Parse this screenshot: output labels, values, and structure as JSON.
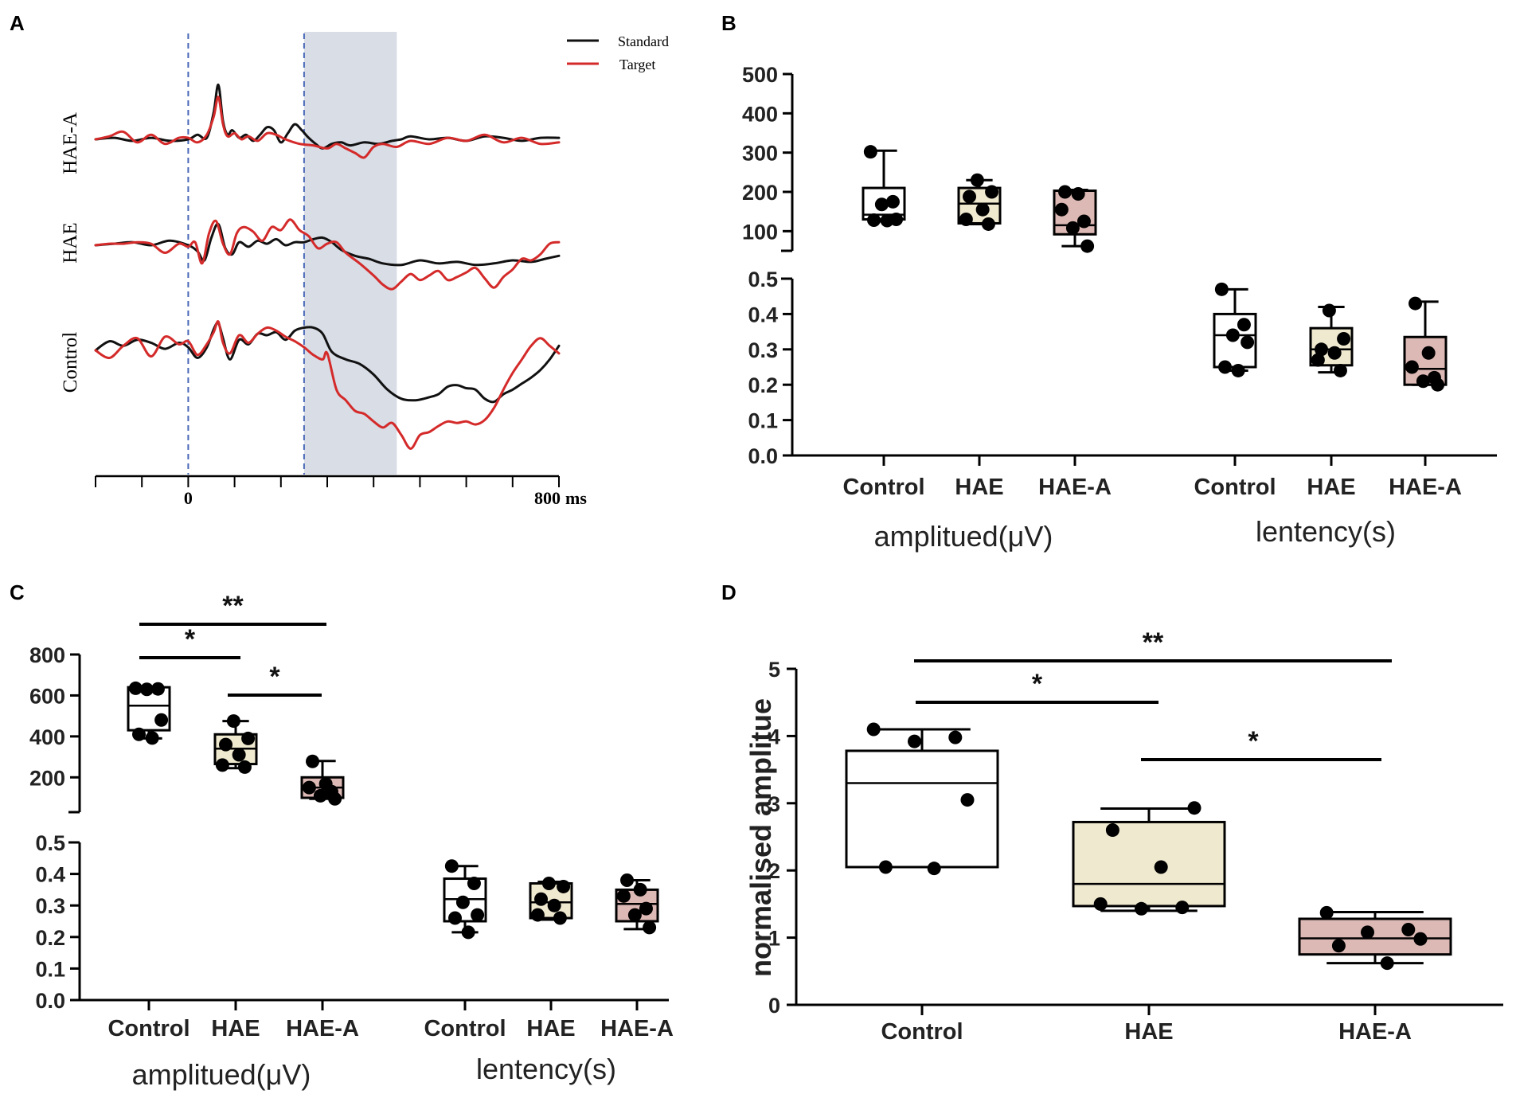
{
  "colors": {
    "standard": "#111111",
    "target": "#d42a2a",
    "control_box": "#ffffff",
    "hae_box": "#efe9cf",
    "haea_box": "#dcb9b5",
    "window_shade": "#d8dde6",
    "dash_line": "#4a68b8"
  },
  "panel_letters": [
    "A",
    "B",
    "C",
    "D"
  ],
  "chart_data": [
    {
      "panel": "A",
      "type": "line",
      "title": "",
      "legend": [
        "Standard",
        "Target"
      ],
      "legend_position": "top-right",
      "row_labels": [
        "HAE-A",
        "HAE",
        "Control"
      ],
      "x_tick_labels": [
        "0",
        "800"
      ],
      "x_unit": "ms",
      "xlim": [
        -200,
        800
      ],
      "analysis_window_ms": [
        250,
        450
      ],
      "series": [
        {
          "row": "HAE-A",
          "name": "Standard",
          "x": [
            -200,
            -160,
            -120,
            -80,
            -40,
            0,
            20,
            40,
            55,
            65,
            75,
            85,
            95,
            110,
            125,
            140,
            155,
            170,
            185,
            200,
            215,
            230,
            245,
            260,
            275,
            290,
            310,
            330,
            350,
            380,
            410,
            440,
            460,
            480,
            520,
            560,
            600,
            640,
            680,
            720,
            760,
            800
          ],
          "y": [
            0,
            0.1,
            -0.1,
            0.1,
            -0.1,
            0,
            0.3,
            0.1,
            1.8,
            3.6,
            1.2,
            0.3,
            0.6,
            0.1,
            0.3,
            -0.1,
            0.3,
            0.8,
            0.6,
            -0.2,
            0.4,
            1.0,
            0.6,
            0.1,
            -0.3,
            -0.6,
            -0.3,
            -0.2,
            -0.4,
            -0.2,
            -0.3,
            -0.1,
            0,
            0.2,
            0,
            0.1,
            -0.1,
            0.2,
            0.1,
            -0.1,
            0.1,
            0.1
          ]
        },
        {
          "row": "HAE-A",
          "name": "Target",
          "x": [
            -200,
            -170,
            -140,
            -110,
            -80,
            -50,
            -20,
            0,
            20,
            40,
            55,
            65,
            75,
            85,
            100,
            115,
            130,
            150,
            170,
            190,
            210,
            240,
            270,
            300,
            320,
            340,
            360,
            380,
            400,
            420,
            450,
            480,
            520,
            560,
            600,
            640,
            680,
            720,
            760,
            800
          ],
          "y": [
            0,
            0.2,
            0.5,
            -0.2,
            0.3,
            -0.3,
            0.1,
            0.1,
            -0.2,
            0.3,
            1.5,
            2.8,
            1.0,
            0.2,
            0.4,
            0,
            0.2,
            -0.1,
            0.4,
            0.3,
            0,
            -0.3,
            -0.4,
            -0.6,
            -0.3,
            -0.6,
            -0.9,
            -1.2,
            -0.5,
            -0.3,
            -0.5,
            -0.1,
            -0.3,
            0.1,
            -0.1,
            0.3,
            -0.2,
            0.1,
            -0.3,
            -0.2
          ]
        },
        {
          "row": "HAE",
          "name": "Standard",
          "x": [
            -200,
            -160,
            -120,
            -80,
            -40,
            0,
            20,
            35,
            50,
            65,
            80,
            95,
            110,
            130,
            150,
            170,
            190,
            210,
            230,
            250,
            270,
            290,
            310,
            330,
            360,
            390,
            420,
            460,
            500,
            540,
            580,
            620,
            660,
            700,
            740,
            770,
            800
          ],
          "y": [
            0,
            0.1,
            0.2,
            0,
            0.3,
            0,
            -0.4,
            -1.0,
            0.5,
            1.4,
            -0.2,
            -0.6,
            0.2,
            -0.1,
            0.3,
            0.1,
            0.4,
            0,
            0.2,
            0.2,
            0.4,
            0.5,
            0.2,
            -0.3,
            -0.7,
            -0.9,
            -1.2,
            -1.3,
            -1.0,
            -1.2,
            -1.1,
            -1.3,
            -1.2,
            -1.0,
            -1.1,
            -0.9,
            -0.7
          ]
        },
        {
          "row": "HAE",
          "name": "Target",
          "x": [
            -200,
            -170,
            -140,
            -110,
            -80,
            -50,
            -20,
            0,
            15,
            30,
            45,
            60,
            75,
            90,
            105,
            120,
            140,
            160,
            180,
            200,
            220,
            240,
            260,
            280,
            300,
            320,
            340,
            370,
            400,
            420,
            440,
            460,
            480,
            500,
            520,
            540,
            560,
            580,
            600,
            620,
            640,
            660,
            680,
            700,
            720,
            740,
            760,
            780,
            800
          ],
          "y": [
            0,
            0.1,
            0.1,
            0.2,
            0.1,
            -0.5,
            0.1,
            -0.1,
            0.2,
            -1.2,
            0.8,
            1.6,
            0.1,
            -0.6,
            0.8,
            1.2,
            0.9,
            0.3,
            1.2,
            1.0,
            1.7,
            1.0,
            0.6,
            -0.2,
            0.1,
            0.2,
            -0.5,
            -1.2,
            -2.0,
            -2.6,
            -2.9,
            -2.4,
            -1.9,
            -2.3,
            -2.0,
            -1.7,
            -2.3,
            -2.1,
            -1.8,
            -1.5,
            -2.2,
            -2.8,
            -2.1,
            -1.6,
            -0.9,
            -1.0,
            -0.6,
            0.1,
            0.2
          ]
        },
        {
          "row": "Control",
          "name": "Standard",
          "x": [
            -200,
            -170,
            -140,
            -110,
            -80,
            -50,
            -20,
            0,
            20,
            40,
            55,
            65,
            75,
            90,
            110,
            130,
            150,
            170,
            190,
            210,
            230,
            250,
            270,
            290,
            310,
            340,
            370,
            400,
            430,
            460,
            490,
            520,
            540,
            560,
            580,
            600,
            620,
            640,
            660,
            680,
            700,
            720,
            740,
            760,
            780,
            800
          ],
          "y": [
            0,
            0.6,
            0.3,
            0.7,
            0.5,
            0.1,
            0.5,
            0.2,
            -0.5,
            0.2,
            1.4,
            1.8,
            0.8,
            -0.6,
            0.7,
            0.4,
            1.1,
            1.0,
            1.2,
            0.7,
            1.3,
            1.5,
            1.5,
            1.1,
            -0.1,
            -0.6,
            -0.9,
            -1.6,
            -2.6,
            -3.2,
            -3.3,
            -3.1,
            -2.9,
            -2.4,
            -2.3,
            -2.5,
            -2.6,
            -3.2,
            -3.4,
            -2.9,
            -2.6,
            -2.2,
            -1.8,
            -1.3,
            -0.6,
            0.3
          ]
        },
        {
          "row": "Control",
          "name": "Target",
          "x": [
            -200,
            -170,
            -140,
            -110,
            -80,
            -50,
            -20,
            0,
            20,
            40,
            55,
            65,
            75,
            90,
            110,
            130,
            150,
            170,
            190,
            210,
            230,
            250,
            270,
            290,
            300,
            320,
            340,
            360,
            380,
            400,
            420,
            440,
            460,
            480,
            500,
            520,
            540,
            560,
            580,
            600,
            620,
            640,
            660,
            680,
            700,
            720,
            740,
            760,
            780,
            800
          ],
          "y": [
            0,
            -0.5,
            0.3,
            0.8,
            -0.4,
            0.9,
            0.4,
            0.6,
            -0.3,
            0.4,
            1.2,
            1.9,
            0.5,
            -0.2,
            1.0,
            0.5,
            1.1,
            1.5,
            1.3,
            0.9,
            0.6,
            0.2,
            -0.3,
            -0.6,
            -0.2,
            -2.6,
            -3.3,
            -4.0,
            -4.2,
            -4.7,
            -5.1,
            -4.8,
            -5.6,
            -6.5,
            -5.6,
            -5.4,
            -5.0,
            -4.7,
            -4.8,
            -4.7,
            -4.9,
            -4.6,
            -3.8,
            -2.6,
            -1.5,
            -0.6,
            0.3,
            0.8,
            0.3,
            -0.2
          ]
        }
      ]
    },
    {
      "panel": "B",
      "type": "box",
      "broken_axis": true,
      "upper_ticks": [
        "500",
        "400",
        "300",
        "200",
        "100"
      ],
      "lower_ticks": [
        "0.5",
        "0.4",
        "0.3",
        "0.2",
        "0.1",
        "0.0"
      ],
      "upper_range": [
        50,
        500
      ],
      "lower_range": [
        0,
        0.5
      ],
      "categories": [
        "Control",
        "HAE",
        "HAE-A",
        "Control",
        "HAE",
        "HAE-A"
      ],
      "group_labels": [
        "amplitued(μV)",
        "lentency(s)"
      ],
      "boxes": [
        {
          "group": "amplitude",
          "category": "Control",
          "min": 125,
          "q1": 130,
          "median": 142,
          "q3": 210,
          "max": 305,
          "points": [
            302,
            175,
            168,
            130,
            128,
            127
          ],
          "fill": "control_box"
        },
        {
          "group": "amplitude",
          "category": "HAE",
          "min": 118,
          "q1": 120,
          "median": 170,
          "q3": 210,
          "max": 230,
          "points": [
            230,
            200,
            188,
            155,
            130,
            118
          ],
          "fill": "hae_box"
        },
        {
          "group": "amplitude",
          "category": "HAE-A",
          "min": 62,
          "q1": 92,
          "median": 115,
          "q3": 203,
          "max": 205,
          "points": [
            200,
            195,
            155,
            125,
            108,
            62
          ],
          "fill": "haea_box"
        },
        {
          "group": "latency",
          "category": "Control",
          "min": 0.24,
          "q1": 0.25,
          "median": 0.34,
          "q3": 0.4,
          "max": 0.47,
          "points": [
            0.47,
            0.37,
            0.34,
            0.32,
            0.25,
            0.24
          ],
          "fill": "control_box"
        },
        {
          "group": "latency",
          "category": "HAE",
          "min": 0.235,
          "q1": 0.255,
          "median": 0.3,
          "q3": 0.36,
          "max": 0.42,
          "points": [
            0.41,
            0.33,
            0.3,
            0.29,
            0.27,
            0.24
          ],
          "fill": "hae_box"
        },
        {
          "group": "latency",
          "category": "HAE-A",
          "min": 0.2,
          "q1": 0.2,
          "median": 0.245,
          "q3": 0.335,
          "max": 0.435,
          "points": [
            0.43,
            0.29,
            0.25,
            0.22,
            0.21,
            0.2
          ],
          "fill": "haea_box"
        }
      ]
    },
    {
      "panel": "C",
      "type": "box",
      "broken_axis": true,
      "upper_ticks": [
        "800",
        "600",
        "400",
        "200"
      ],
      "lower_ticks": [
        "0.5",
        "0.4",
        "0.3",
        "0.2",
        "0.1",
        "0.0"
      ],
      "upper_range": [
        30,
        800
      ],
      "lower_range": [
        0,
        0.5
      ],
      "categories": [
        "Control",
        "HAE",
        "HAE-A",
        "Control",
        "HAE",
        "HAE-A"
      ],
      "group_labels": [
        "amplitued(μV)",
        "lentency(s)"
      ],
      "boxes": [
        {
          "group": "amplitude",
          "category": "Control",
          "min": 390,
          "q1": 430,
          "median": 550,
          "q3": 640,
          "max": 640,
          "points": [
            635,
            632,
            630,
            480,
            410,
            392
          ],
          "fill": "control_box"
        },
        {
          "group": "amplitude",
          "category": "HAE",
          "min": 245,
          "q1": 265,
          "median": 340,
          "q3": 410,
          "max": 475,
          "points": [
            475,
            390,
            360,
            310,
            260,
            250
          ],
          "fill": "hae_box"
        },
        {
          "group": "amplitude",
          "category": "HAE-A",
          "min": 95,
          "q1": 100,
          "median": 150,
          "q3": 200,
          "max": 280,
          "points": [
            278,
            168,
            150,
            130,
            110,
            95
          ],
          "fill": "haea_box"
        },
        {
          "group": "latency",
          "category": "Control",
          "min": 0.215,
          "q1": 0.25,
          "median": 0.32,
          "q3": 0.385,
          "max": 0.425,
          "points": [
            0.425,
            0.37,
            0.31,
            0.27,
            0.26,
            0.215
          ],
          "fill": "control_box"
        },
        {
          "group": "latency",
          "category": "HAE",
          "min": 0.255,
          "q1": 0.26,
          "median": 0.31,
          "q3": 0.37,
          "max": 0.375,
          "points": [
            0.37,
            0.36,
            0.32,
            0.3,
            0.27,
            0.26
          ],
          "fill": "hae_box"
        },
        {
          "group": "latency",
          "category": "HAE-A",
          "min": 0.225,
          "q1": 0.25,
          "median": 0.305,
          "q3": 0.35,
          "max": 0.38,
          "points": [
            0.38,
            0.35,
            0.33,
            0.29,
            0.27,
            0.23
          ],
          "fill": "haea_box"
        }
      ],
      "significance": [
        {
          "from": 0,
          "to": 2,
          "label": "**"
        },
        {
          "from": 0,
          "to": 1,
          "label": "*"
        },
        {
          "from": 1,
          "to": 2,
          "label": "*"
        }
      ]
    },
    {
      "panel": "D",
      "type": "box",
      "ylabel": "normalised amplitue",
      "ylim": [
        0,
        5
      ],
      "y_ticks": [
        "0",
        "1",
        "2",
        "3",
        "4",
        "5"
      ],
      "categories": [
        "Control",
        "HAE",
        "HAE-A"
      ],
      "boxes": [
        {
          "category": "Control",
          "min": 2.05,
          "q1": 2.05,
          "median": 3.3,
          "q3": 3.78,
          "max": 4.1,
          "points": [
            4.1,
            3.98,
            3.92,
            3.05,
            2.05,
            2.03
          ],
          "fill": "control_box"
        },
        {
          "category": "HAE",
          "min": 1.4,
          "q1": 1.47,
          "median": 1.8,
          "q3": 2.72,
          "max": 2.92,
          "points": [
            2.93,
            2.6,
            2.05,
            1.5,
            1.45,
            1.43
          ],
          "fill": "hae_box"
        },
        {
          "category": "HAE-A",
          "min": 0.62,
          "q1": 0.75,
          "median": 0.99,
          "q3": 1.28,
          "max": 1.38,
          "points": [
            1.37,
            1.12,
            1.08,
            0.98,
            0.88,
            0.62
          ],
          "fill": "haea_box"
        }
      ],
      "significance": [
        {
          "from": 0,
          "to": 2,
          "label": "**"
        },
        {
          "from": 0,
          "to": 1,
          "label": "*"
        },
        {
          "from": 1,
          "to": 2,
          "label": "*"
        }
      ]
    }
  ]
}
